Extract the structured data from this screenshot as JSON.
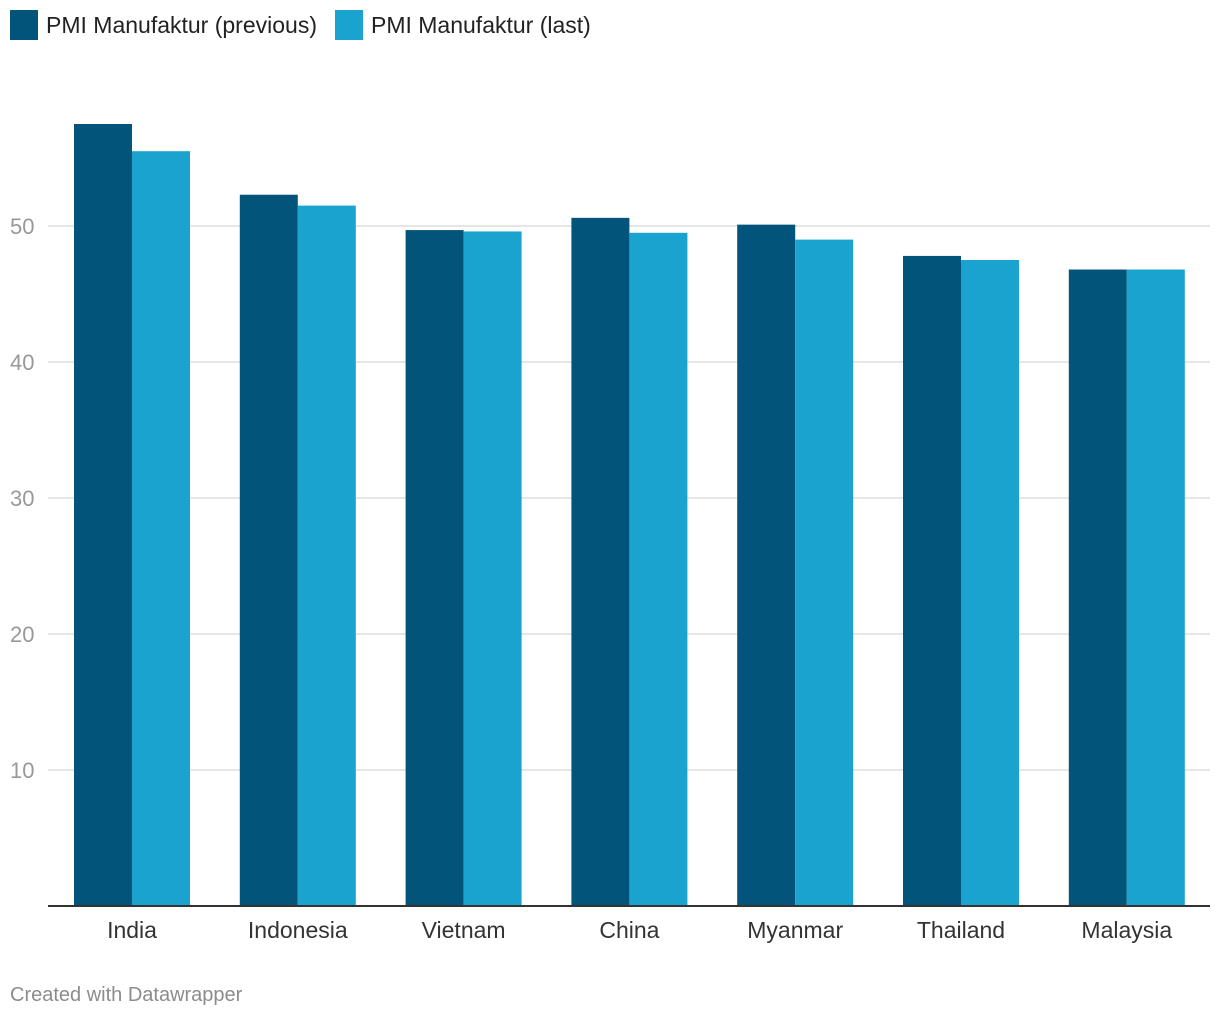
{
  "legend": {
    "previous_label": "PMI Manufaktur (previous)",
    "last_label": "PMI Manufaktur (last)"
  },
  "colors": {
    "previous": "#02547a",
    "last": "#1aa3ce",
    "grid": "#dddddd",
    "axis": "#333333",
    "tick_label": "#999999",
    "category_label": "#333333"
  },
  "chart_data": {
    "type": "bar",
    "categories": [
      "India",
      "Indonesia",
      "Vietnam",
      "China",
      "Myanmar",
      "Thailand",
      "Malaysia"
    ],
    "series": [
      {
        "name": "PMI Manufaktur (previous)",
        "values": [
          57.5,
          52.3,
          49.7,
          50.6,
          50.1,
          47.8,
          46.8
        ]
      },
      {
        "name": "PMI Manufaktur (last)",
        "values": [
          55.5,
          51.5,
          49.6,
          49.5,
          49.0,
          47.5,
          46.8
        ]
      }
    ],
    "yticks": [
      10,
      20,
      30,
      40,
      50
    ],
    "ylim": [
      0,
      60
    ],
    "grid": true,
    "legend_position": "top-left"
  },
  "footer": {
    "credit": "Created with Datawrapper"
  }
}
